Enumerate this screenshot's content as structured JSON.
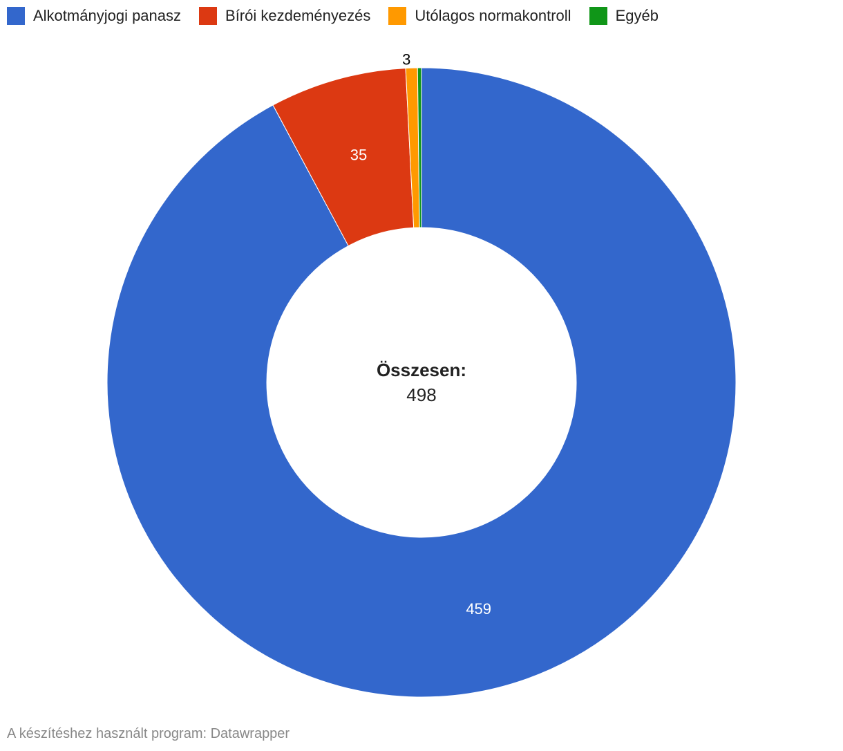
{
  "chart_data": {
    "type": "donut",
    "categories": [
      "Alkotmányjogi panasz",
      "Bírói kezdeményezés",
      "Utólagos normakontroll",
      "Egyéb"
    ],
    "values": [
      459,
      35,
      3,
      1
    ],
    "value_labels": [
      "459",
      "35",
      "3",
      null
    ],
    "colors": [
      "#3367cc",
      "#dc3912",
      "#ff9900",
      "#109618"
    ],
    "center_label": "Összesen:",
    "total": 498,
    "source": "A készítéshez használt program: Datawrapper"
  }
}
